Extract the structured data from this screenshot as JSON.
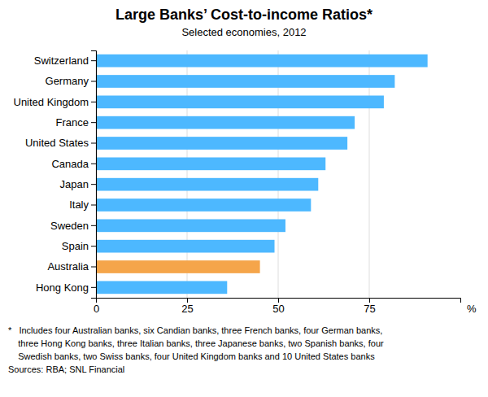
{
  "chart_data": {
    "type": "bar",
    "orientation": "horizontal",
    "title": "Large Banks’ Cost-to-income Ratios*",
    "subtitle": "Selected economies, 2012",
    "categories": [
      "Switzerland",
      "Germany",
      "United Kingdom",
      "France",
      "United States",
      "Canada",
      "Japan",
      "Italy",
      "Sweden",
      "Spain",
      "Australia",
      "Hong Kong"
    ],
    "values": [
      91,
      82,
      79,
      71,
      69,
      63,
      61,
      59,
      52,
      49,
      45,
      36
    ],
    "colors": [
      "#4db8ff",
      "#4db8ff",
      "#4db8ff",
      "#4db8ff",
      "#4db8ff",
      "#4db8ff",
      "#4db8ff",
      "#4db8ff",
      "#4db8ff",
      "#4db8ff",
      "#f5a54a",
      "#4db8ff"
    ],
    "xlim": [
      0,
      100
    ],
    "xticks": [
      0,
      25,
      50,
      75
    ],
    "xlabel": "%",
    "grid": true,
    "annotations": [
      "*   Includes four Australian banks, six Candian banks, three French banks, four German banks,",
      "    three Hong Kong banks, three Italian banks, three Japanese banks, two Spanish banks, four",
      "    Swedish banks, two Swiss banks, four United Kingdom banks and 10 United States banks",
      "Sources: RBA; SNL Financial"
    ]
  }
}
